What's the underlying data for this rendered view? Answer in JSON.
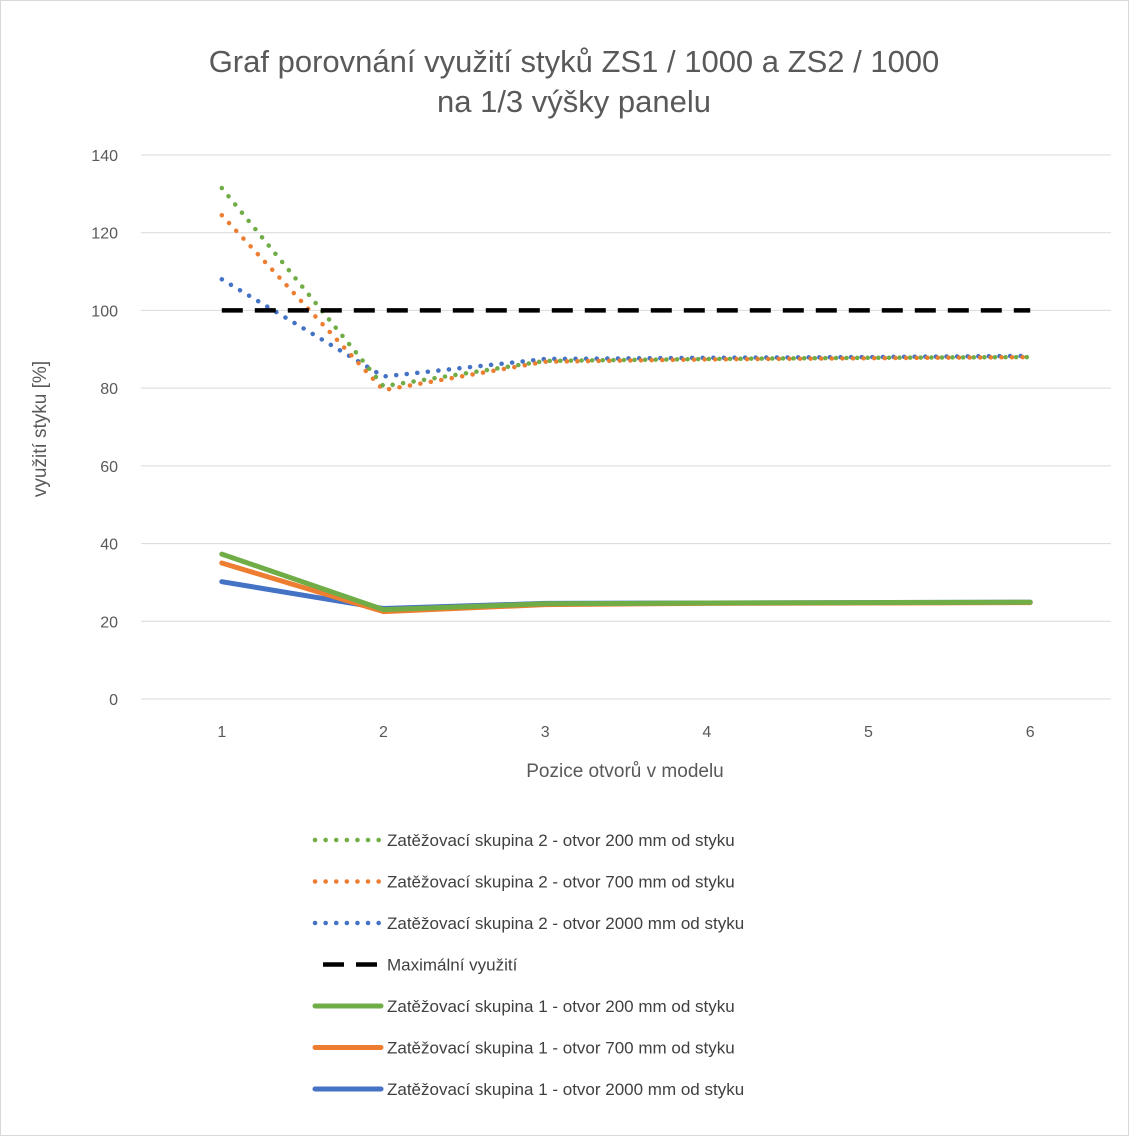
{
  "chart_data": {
    "type": "line",
    "title": [
      "Graf porovnání  využití styků ZS1 / 1000 a ZS2 / 1000",
      "na 1/3 výšky panelu"
    ],
    "xlabel": "Pozice otvorů v modelu",
    "ylabel": "využití styku [%]",
    "ylim": [
      0,
      140
    ],
    "yticks": [
      "0",
      "20",
      "40",
      "60",
      "80",
      "100",
      "120",
      "140"
    ],
    "categories": [
      "1",
      "2",
      "3",
      "4",
      "5",
      "6"
    ],
    "grid": true,
    "legend_position": "bottom",
    "series": [
      {
        "name": "Zatěžovací skupina 2 - otvor 200 mm od styku",
        "color": "#70AD47",
        "style": "dotted",
        "values": [
          131.5,
          80.5,
          87.0,
          87.5,
          87.8,
          88.0
        ]
      },
      {
        "name": "Zatěžovací skupina 2 - otvor 700 mm od styku",
        "color": "#ED7D31",
        "style": "dotted",
        "values": [
          124.5,
          79.5,
          86.8,
          87.4,
          87.7,
          88.0
        ]
      },
      {
        "name": "Zatěžovací skupina 2 - otvor 2000 mm od styku",
        "color": "#4472C4",
        "style": "dotted",
        "values": [
          108.0,
          83.0,
          87.5,
          87.8,
          88.0,
          88.3
        ]
      },
      {
        "name": "Maximální využití",
        "color": "#000000",
        "style": "dashed",
        "values": [
          100,
          100,
          100,
          100,
          100,
          100
        ]
      },
      {
        "name": "Zatěžovací skupina 1 - otvor 200 mm od styku",
        "color": "#70AD47",
        "style": "solid",
        "values": [
          37.3,
          23.0,
          24.5,
          24.7,
          24.8,
          24.9
        ]
      },
      {
        "name": "Zatěžovací skupina 1 - otvor 700 mm od styku",
        "color": "#ED7D31",
        "style": "solid",
        "values": [
          35.0,
          22.5,
          24.3,
          24.6,
          24.7,
          24.8
        ]
      },
      {
        "name": "Zatěžovací skupina 1 - otvor 2000 mm od styku",
        "color": "#4472C4",
        "style": "solid",
        "values": [
          30.2,
          23.3,
          24.6,
          24.7,
          24.8,
          24.9
        ]
      }
    ]
  }
}
